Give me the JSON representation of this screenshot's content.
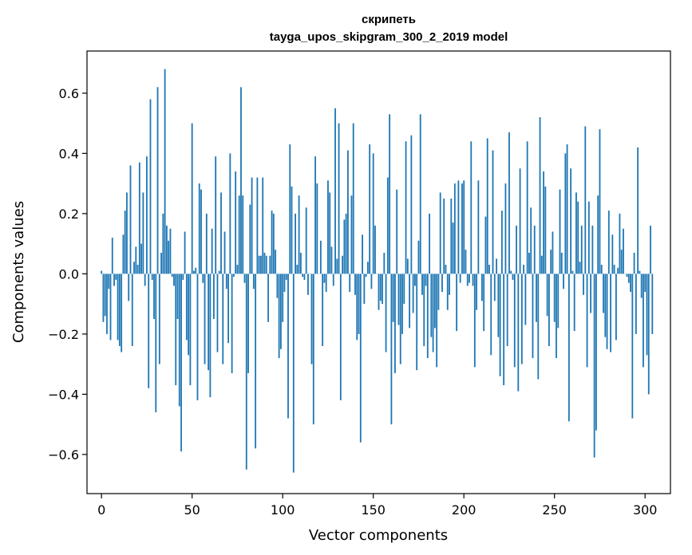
{
  "chart_data": {
    "type": "bar",
    "title": "скрипеть",
    "subtitle": "tayga_upos_skipgram_300_2_2019 model",
    "xlabel": "Vector components",
    "ylabel": "Components values",
    "xlim": [
      -8,
      314
    ],
    "ylim": [
      -0.73,
      0.74
    ],
    "xticks": [
      0,
      50,
      100,
      150,
      200,
      250,
      300
    ],
    "xtick_labels": [
      "0",
      "50",
      "100",
      "150",
      "200",
      "250",
      "300"
    ],
    "yticks": [
      -0.6,
      -0.4,
      -0.2,
      0.0,
      0.2,
      0.4,
      0.6
    ],
    "ytick_labels": [
      "−0.6",
      "−0.4",
      "−0.2",
      "0.0",
      "0.2",
      "0.4",
      "0.6"
    ],
    "grid": false,
    "bar_color": "#1f77b4",
    "x_start": 0,
    "values": [
      0.01,
      -0.16,
      -0.14,
      -0.2,
      -0.05,
      -0.22,
      0.12,
      -0.04,
      -0.02,
      -0.22,
      -0.24,
      -0.26,
      0.13,
      0.21,
      0.27,
      -0.09,
      0.36,
      -0.24,
      0.04,
      0.09,
      0.03,
      0.37,
      0.1,
      0.27,
      -0.04,
      0.39,
      -0.38,
      0.58,
      -0.02,
      -0.15,
      -0.46,
      0.62,
      -0.3,
      0.07,
      0.2,
      0.68,
      0.16,
      0.11,
      0.15,
      -0.01,
      -0.04,
      -0.37,
      -0.15,
      -0.44,
      -0.59,
      -0.02,
      0.14,
      -0.22,
      -0.27,
      -0.37,
      0.5,
      0.01,
      0.02,
      -0.42,
      0.3,
      0.28,
      -0.03,
      -0.3,
      0.2,
      -0.32,
      -0.41,
      0.15,
      -0.15,
      0.39,
      -0.26,
      0.01,
      0.27,
      -0.3,
      0.14,
      -0.05,
      -0.23,
      0.4,
      -0.33,
      -0.01,
      0.34,
      0.03,
      0.26,
      0.62,
      0.26,
      -0.03,
      -0.65,
      -0.33,
      0.23,
      0.32,
      -0.05,
      -0.58,
      0.32,
      0.06,
      0.06,
      0.32,
      0.07,
      0.06,
      -0.16,
      0.06,
      0.21,
      0.2,
      0.08,
      -0.08,
      -0.28,
      -0.25,
      -0.16,
      -0.06,
      -0.02,
      -0.48,
      0.43,
      0.29,
      -0.66,
      0.2,
      0.03,
      0.26,
      0.07,
      -0.01,
      -0.02,
      0.22,
      -0.07,
      0.0,
      -0.3,
      -0.5,
      0.39,
      0.3,
      0.0,
      0.11,
      -0.24,
      -0.03,
      -0.06,
      0.31,
      0.27,
      0.09,
      -0.04,
      0.55,
      0.05,
      0.5,
      -0.42,
      0.06,
      0.18,
      0.2,
      0.41,
      -0.06,
      0.26,
      0.5,
      -0.07,
      -0.22,
      -0.2,
      -0.56,
      0.13,
      -0.1,
      -0.01,
      0.04,
      0.43,
      -0.05,
      0.4,
      0.16,
      0.0,
      -0.12,
      -0.09,
      -0.1,
      0.07,
      -0.26,
      0.32,
      0.53,
      -0.5,
      -0.16,
      -0.33,
      0.28,
      -0.17,
      -0.3,
      -0.2,
      -0.1,
      0.44,
      0.05,
      -0.18,
      0.46,
      -0.13,
      -0.04,
      -0.32,
      0.11,
      0.53,
      -0.07,
      -0.24,
      -0.04,
      -0.28,
      0.2,
      -0.21,
      -0.26,
      -0.18,
      -0.31,
      -0.12,
      0.27,
      -0.06,
      0.25,
      0.03,
      -0.12,
      -0.07,
      0.25,
      0.17,
      0.3,
      -0.19,
      0.31,
      -0.03,
      0.3,
      0.31,
      0.08,
      -0.04,
      -0.03,
      0.44,
      -0.04,
      -0.31,
      -0.12,
      0.31,
      0.0,
      -0.09,
      -0.19,
      0.19,
      0.45,
      0.03,
      -0.27,
      0.41,
      -0.09,
      0.05,
      -0.21,
      -0.34,
      0.21,
      -0.37,
      0.3,
      -0.24,
      0.47,
      0.01,
      -0.02,
      -0.31,
      0.16,
      -0.39,
      0.35,
      -0.3,
      0.03,
      -0.17,
      0.44,
      0.07,
      0.22,
      -0.28,
      0.16,
      -0.16,
      -0.35,
      0.52,
      0.06,
      0.34,
      0.29,
      -0.14,
      -0.24,
      0.08,
      0.14,
      -0.16,
      -0.28,
      -0.18,
      0.28,
      0.07,
      -0.05,
      0.4,
      0.43,
      -0.49,
      0.35,
      0.01,
      -0.19,
      0.27,
      0.24,
      0.04,
      0.16,
      -0.07,
      0.49,
      -0.31,
      0.24,
      -0.13,
      0.16,
      -0.61,
      -0.52,
      0.26,
      0.48,
      0.03,
      -0.13,
      -0.21,
      -0.25,
      0.21,
      -0.26,
      0.13,
      0.03,
      -0.22,
      0.02,
      0.2,
      0.08,
      0.15,
      0.0,
      -0.01,
      -0.03,
      -0.06,
      -0.48,
      0.07,
      -0.2,
      0.42,
      0.01,
      -0.08,
      -0.31,
      -0.06,
      -0.27,
      -0.4,
      0.16,
      -0.2
    ]
  }
}
